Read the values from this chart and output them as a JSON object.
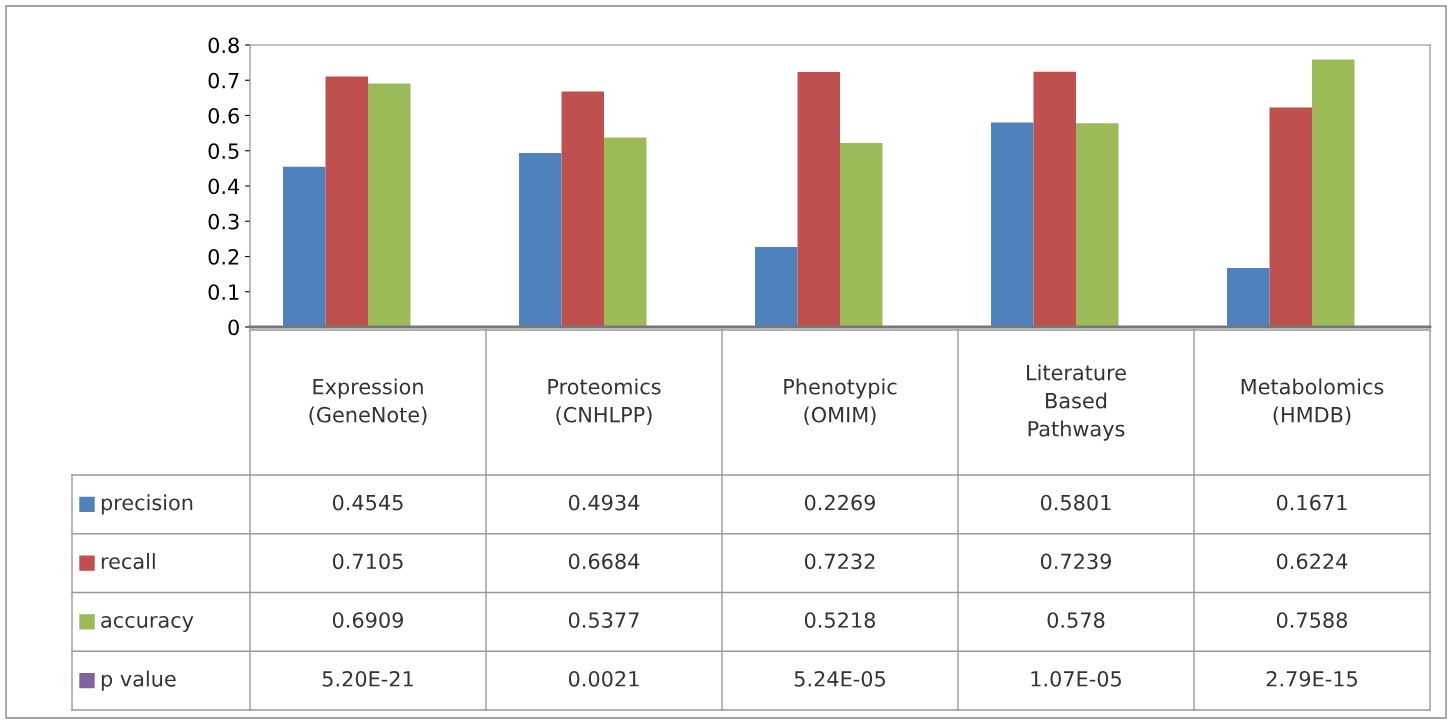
{
  "chart_data": {
    "type": "bar",
    "categories": [
      "Expression\n(GeneNote)",
      "Proteomics\n(CNHLPP)",
      "Phenotypic\n(OMIM)",
      "Literature\nBased\nPathways",
      "Metabolomics\n(HMDB)"
    ],
    "series": [
      {
        "name": "precision",
        "color": "#4f81bd",
        "values": [
          0.4545,
          0.4934,
          0.2269,
          0.5801,
          0.1671
        ],
        "value_labels": [
          "0.4545",
          "0.4934",
          "0.2269",
          "0.5801",
          "0.1671"
        ]
      },
      {
        "name": "recall",
        "color": "#c0504d",
        "values": [
          0.7105,
          0.6684,
          0.7232,
          0.7239,
          0.6224
        ],
        "value_labels": [
          "0.7105",
          "0.6684",
          "0.7232",
          "0.7239",
          "0.6224"
        ]
      },
      {
        "name": "accuracy",
        "color": "#9bbb59",
        "values": [
          0.6909,
          0.5377,
          0.5218,
          0.578,
          0.7588
        ],
        "value_labels": [
          "0.6909",
          "0.5377",
          "0.5218",
          "0.578",
          "0.7588"
        ]
      },
      {
        "name": "p value",
        "color": "#8064a2",
        "values": [
          5.2e-21,
          0.0021,
          5.24e-05,
          1.07e-05,
          2.79e-15
        ],
        "value_labels": [
          "5.20E-21",
          "0.0021",
          "5.24E-05",
          "1.07E-05",
          "2.79E-15"
        ]
      }
    ],
    "ylim": [
      0,
      0.8
    ],
    "yticks": [
      0,
      0.1,
      0.2,
      0.3,
      0.4,
      0.5,
      0.6,
      0.7,
      0.8
    ],
    "grid": false,
    "legend": "bottom"
  }
}
